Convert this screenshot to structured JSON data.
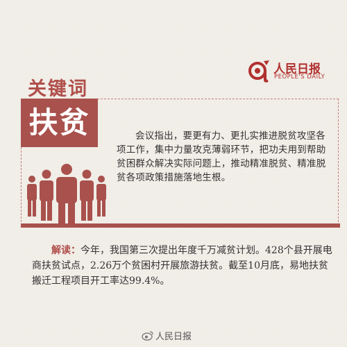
{
  "header": {
    "keyword_label": "关键词",
    "logo_name": "人民日报",
    "logo_sub": "PEOPLE'S DAILY"
  },
  "card": {
    "keyword": "扶贫",
    "text": "会议指出，要更有力、更扎实推进脱贫攻坚各项工作，集中力量攻克薄弱环节，把功夫用到帮助贫困群众解决实际问题上，推动精准脱贫、精准脱贫各项政策措施落地生根。"
  },
  "explain": {
    "label": "解读：",
    "text": "今年，我国第三次提出年度千万减贫计划。428个县开展电商扶贫试点，2.26万个贫困村开展旅游扶贫。截至10月底，易地扶贫搬迁工程项目开工率达99.4%。"
  },
  "footer": {
    "watermark": "人民日报"
  },
  "colors": {
    "accent": "#a9514d",
    "logo_red": "#b0302e",
    "background": "#f3efe9"
  },
  "icons": [
    "people-group-icon",
    "people-daily-logo-icon",
    "weibo-icon"
  ]
}
